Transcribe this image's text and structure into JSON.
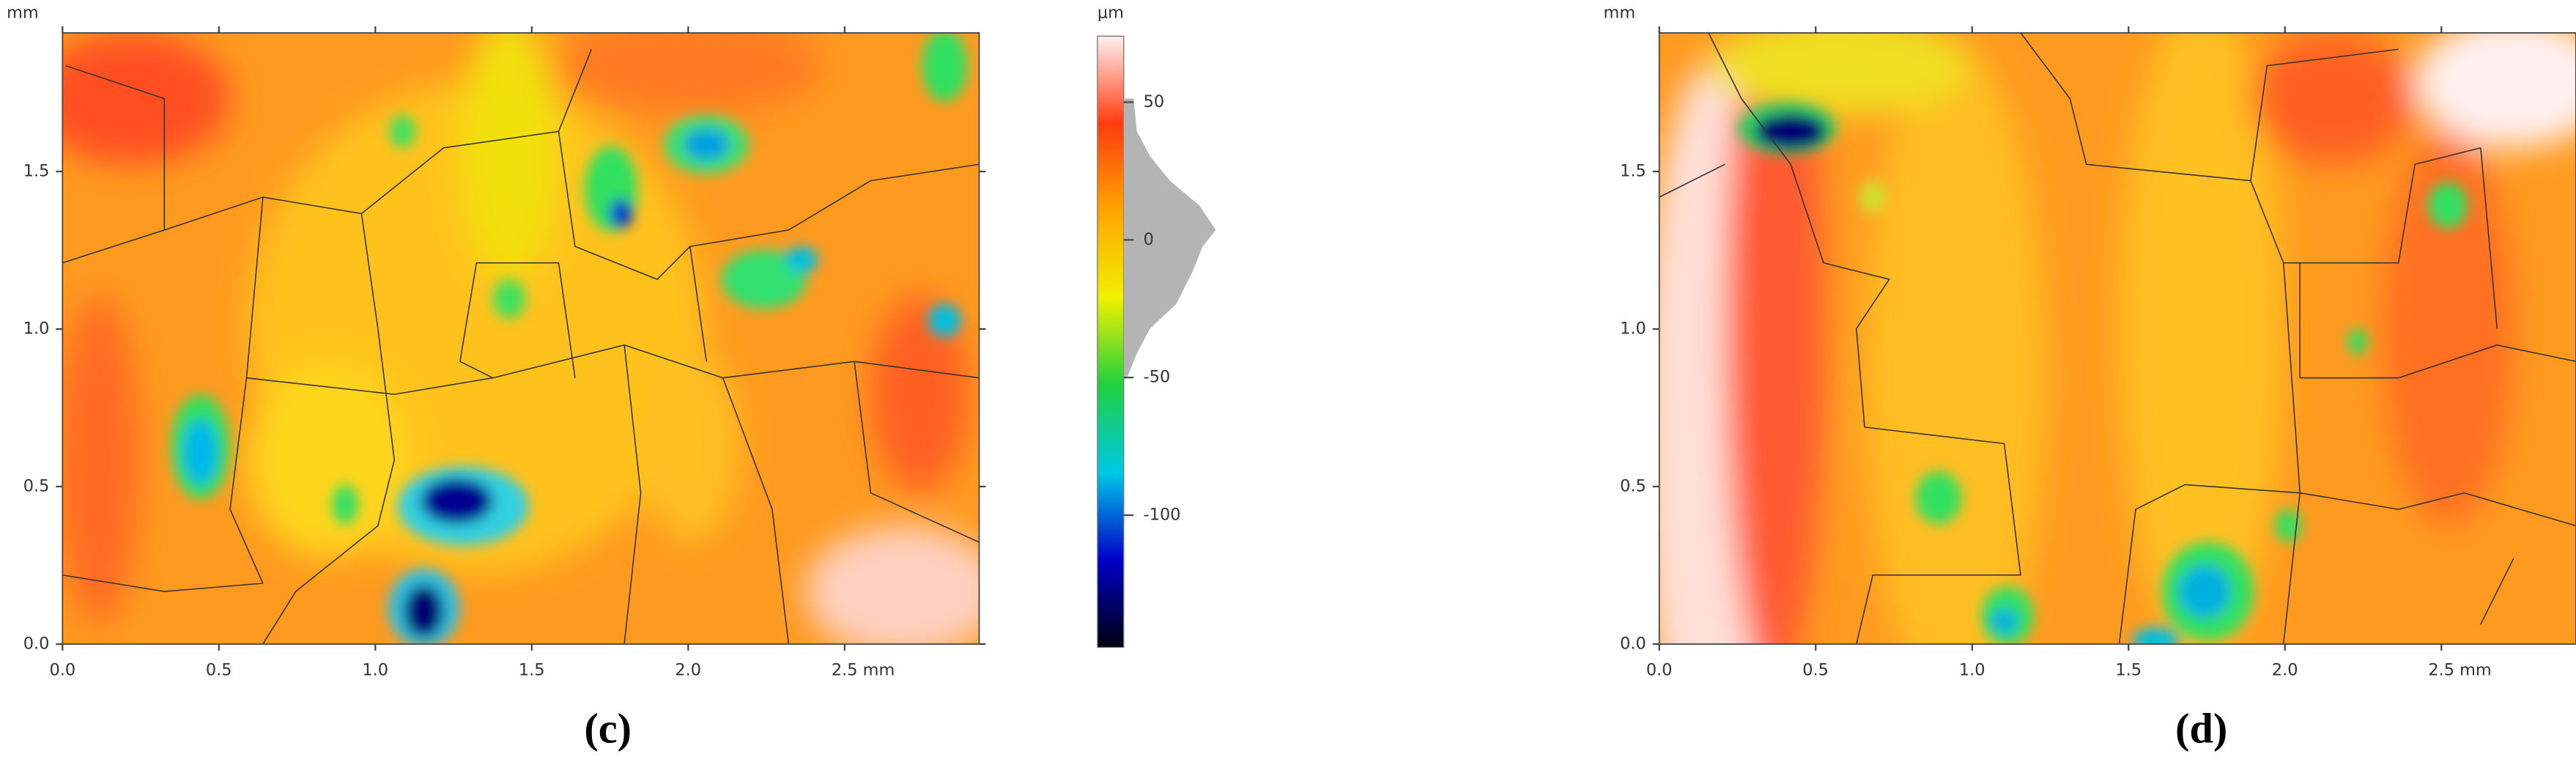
{
  "chart_data": [
    {
      "type": "heatmap",
      "panel_label": "(c)",
      "y_unit": "mm",
      "xlim": [
        0,
        2.93
      ],
      "ylim": [
        0,
        1.94
      ],
      "xticks": [
        {
          "value": 0,
          "label": "0.0"
        },
        {
          "value": 0.5,
          "label": "0.5"
        },
        {
          "value": 1,
          "label": "1.0"
        },
        {
          "value": 1.5,
          "label": "1.5"
        },
        {
          "value": 2,
          "label": "2.0"
        },
        {
          "value": 2.5,
          "label": "2.5 mm"
        }
      ],
      "yticks": [
        {
          "value": 0,
          "label": "0.0"
        },
        {
          "value": 0.5,
          "label": "0.5"
        },
        {
          "value": 1,
          "label": "1.0"
        },
        {
          "value": 1.5,
          "label": "1.5"
        }
      ],
      "colorbar": {
        "unit": "μm",
        "lim": [
          -148,
          74
        ],
        "ticks": [
          50,
          0,
          -50,
          -100
        ],
        "colors": [
          "#000010",
          "#0000c8",
          "#00c8e6",
          "#20d040",
          "#f0f000",
          "#ffa500",
          "#ff3c10",
          "#fff0f0"
        ]
      }
    },
    {
      "type": "heatmap",
      "panel_label": "(d)",
      "y_unit": "mm",
      "xlim": [
        0,
        2.93
      ],
      "ylim": [
        0,
        1.94
      ],
      "xticks": [
        {
          "value": 0,
          "label": "0.0"
        },
        {
          "value": 0.5,
          "label": "0.5"
        },
        {
          "value": 1,
          "label": "1.0"
        },
        {
          "value": 1.5,
          "label": "1.5"
        },
        {
          "value": 2,
          "label": "2.0"
        },
        {
          "value": 2.5,
          "label": "2.5 mm"
        }
      ],
      "yticks": [
        {
          "value": 0,
          "label": "0.0"
        },
        {
          "value": 0.5,
          "label": "0.5"
        },
        {
          "value": 1,
          "label": "1.0"
        },
        {
          "value": 1.5,
          "label": "1.5"
        }
      ]
    }
  ]
}
